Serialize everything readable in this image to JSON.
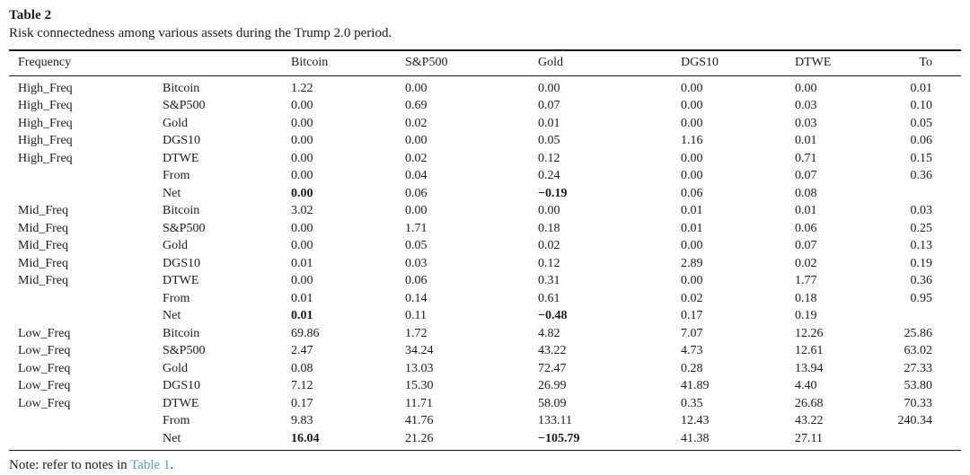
{
  "table": {
    "label": "Table 2",
    "caption": "Risk connectedness among various assets during the Trump 2.0 period.",
    "columns": [
      "Frequency",
      "",
      "Bitcoin",
      "S&P500",
      "Gold",
      "DGS10",
      "DTWE",
      "To"
    ],
    "rows": [
      {
        "freq": "High_Freq",
        "asset": "Bitcoin",
        "values": [
          "1.22",
          "0.00",
          "0.00",
          "0.00",
          "0.00",
          "0.01"
        ],
        "bold": []
      },
      {
        "freq": "High_Freq",
        "asset": "S&P500",
        "values": [
          "0.00",
          "0.69",
          "0.07",
          "0.00",
          "0.03",
          "0.10"
        ],
        "bold": []
      },
      {
        "freq": "High_Freq",
        "asset": "Gold",
        "values": [
          "0.00",
          "0.02",
          "0.01",
          "0.00",
          "0.03",
          "0.05"
        ],
        "bold": []
      },
      {
        "freq": "High_Freq",
        "asset": "DGS10",
        "values": [
          "0.00",
          "0.00",
          "0.05",
          "1.16",
          "0.01",
          "0.06"
        ],
        "bold": []
      },
      {
        "freq": "High_Freq",
        "asset": "DTWE",
        "values": [
          "0.00",
          "0.02",
          "0.12",
          "0.00",
          "0.71",
          "0.15"
        ],
        "bold": []
      },
      {
        "freq": "",
        "asset": "From",
        "values": [
          "0.00",
          "0.04",
          "0.24",
          "0.00",
          "0.07",
          "0.36"
        ],
        "bold": []
      },
      {
        "freq": "",
        "asset": "Net",
        "values": [
          "0.00",
          "0.06",
          "−0.19",
          "0.06",
          "0.08",
          ""
        ],
        "bold": [
          0,
          2
        ]
      },
      {
        "freq": "Mid_Freq",
        "asset": "Bitcoin",
        "values": [
          "3.02",
          "0.00",
          "0.00",
          "0.01",
          "0.01",
          "0.03"
        ],
        "bold": []
      },
      {
        "freq": "Mid_Freq",
        "asset": "S&P500",
        "values": [
          "0.00",
          "1.71",
          "0.18",
          "0.01",
          "0.06",
          "0.25"
        ],
        "bold": []
      },
      {
        "freq": "Mid_Freq",
        "asset": "Gold",
        "values": [
          "0.00",
          "0.05",
          "0.02",
          "0.00",
          "0.07",
          "0.13"
        ],
        "bold": []
      },
      {
        "freq": "Mid_Freq",
        "asset": "DGS10",
        "values": [
          "0.01",
          "0.03",
          "0.12",
          "2.89",
          "0.02",
          "0.19"
        ],
        "bold": []
      },
      {
        "freq": "Mid_Freq",
        "asset": "DTWE",
        "values": [
          "0.00",
          "0.06",
          "0.31",
          "0.00",
          "1.77",
          "0.36"
        ],
        "bold": []
      },
      {
        "freq": "",
        "asset": "From",
        "values": [
          "0.01",
          "0.14",
          "0.61",
          "0.02",
          "0.18",
          "0.95"
        ],
        "bold": []
      },
      {
        "freq": "",
        "asset": "Net",
        "values": [
          "0.01",
          "0.11",
          "−0.48",
          "0.17",
          "0.19",
          ""
        ],
        "bold": [
          0,
          2
        ]
      },
      {
        "freq": "Low_Freq",
        "asset": "Bitcoin",
        "values": [
          "69.86",
          "1.72",
          "4.82",
          "7.07",
          "12.26",
          "25.86"
        ],
        "bold": []
      },
      {
        "freq": "Low_Freq",
        "asset": "S&P500",
        "values": [
          "2.47",
          "34.24",
          "43.22",
          "4.73",
          "12.61",
          "63.02"
        ],
        "bold": []
      },
      {
        "freq": "Low_Freq",
        "asset": "Gold",
        "values": [
          "0.08",
          "13.03",
          "72.47",
          "0.28",
          "13.94",
          "27.33"
        ],
        "bold": []
      },
      {
        "freq": "Low_Freq",
        "asset": "DGS10",
        "values": [
          "7.12",
          "15.30",
          "26.99",
          "41.89",
          "4.40",
          "53.80"
        ],
        "bold": []
      },
      {
        "freq": "Low_Freq",
        "asset": "DTWE",
        "values": [
          "0.17",
          "11.71",
          "58.09",
          "0.35",
          "26.68",
          "70.33"
        ],
        "bold": []
      },
      {
        "freq": "",
        "asset": "From",
        "values": [
          "9.83",
          "41.76",
          "133.11",
          "12.43",
          "43.22",
          "240.34"
        ],
        "bold": []
      },
      {
        "freq": "",
        "asset": "Net",
        "values": [
          "16.04",
          "21.26",
          "−105.79",
          "41.38",
          "27.11",
          ""
        ],
        "bold": [
          0,
          2
        ]
      }
    ]
  },
  "note": {
    "prefix": "Note: refer to notes in ",
    "link": "Table 1",
    "suffix": "."
  },
  "colors": {
    "text": "#1c1c1c",
    "link": "#4DA0D8"
  }
}
